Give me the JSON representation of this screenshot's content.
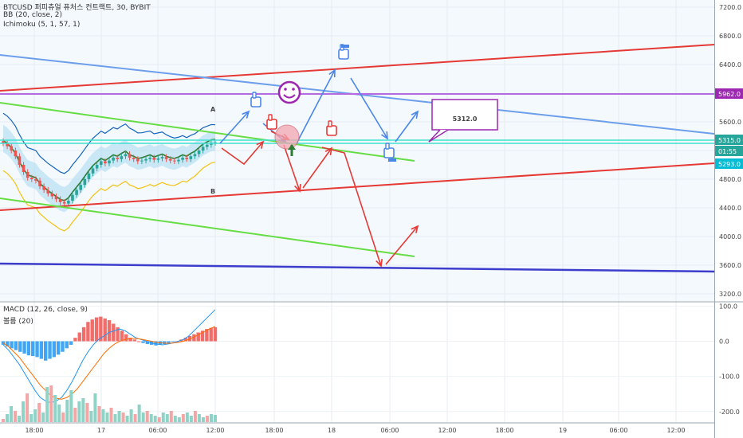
{
  "legend": {
    "symbol": "BTCUSD 퍼피츄얼 퓨처스 컨트랙트, 30, BYBIT",
    "bb": "BB (20, close, 2)",
    "ichimoku": "Ichimoku (5, 1, 57, 1)",
    "macd": "MACD (12, 26, close, 9)",
    "volume": "볼륨 (20)"
  },
  "chart_data": [
    {
      "type": "candlestick",
      "title": "BTCUSD 퍼피츄얼 퓨처스 컨트랙트, 30, BYBIT",
      "ylim": [
        3100,
        7300
      ],
      "y_ticks": [
        "7200.0",
        "6800.0",
        "6400.0",
        "6000.0",
        "5600.0",
        "5200.0",
        "4800.0",
        "4400.0",
        "4000.0",
        "3600.0",
        "3200.0"
      ],
      "price_badges": [
        {
          "text": "5962.0",
          "color": "#9c27b0"
        },
        {
          "text": "5315.0",
          "color": "#26a69a"
        },
        {
          "text": "01:55",
          "color": "#26a69a"
        },
        {
          "text": "5293.0",
          "color": "#00bcd4"
        }
      ],
      "closes": [
        5300,
        5260,
        5200,
        5120,
        5000,
        4900,
        4820,
        4800,
        4780,
        4700,
        4650,
        4600,
        4560,
        4520,
        4480,
        4460,
        4500,
        4580,
        4650,
        4720,
        4800,
        4880,
        4950,
        5000,
        5050,
        5020,
        5060,
        5100,
        5080,
        5120,
        5150,
        5100,
        5080,
        5050,
        5060,
        5080,
        5100,
        5070,
        5090,
        5110,
        5080,
        5060,
        5050,
        5070,
        5100,
        5080,
        5120,
        5150,
        5200,
        5250,
        5280,
        5310,
        5315
      ],
      "annotations": {
        "big_label": "5312.0",
        "letter_a": "A",
        "letter_b": "B",
        "smiley": "☺",
        "paths": [
          {
            "name": "blue-path",
            "color": "#4a86e8",
            "points": [
              [
                5260,
                0
              ],
              [
                5560,
                2
              ],
              [
                5260,
                5
              ],
              [
                6360,
                10
              ],
              [
                5200,
                15
              ],
              [
                5600,
                18
              ]
            ]
          },
          {
            "name": "red-path",
            "color": "#e53935",
            "points": [
              [
                5060,
                3
              ],
              [
                5240,
                6
              ],
              [
                5210,
                7
              ],
              [
                4820,
                10
              ],
              [
                5240,
                14
              ],
              [
                5060,
                15
              ],
              [
                3560,
                19
              ],
              [
                3820,
                21
              ]
            ]
          }
        ]
      },
      "trend_lines": [
        {
          "name": "red-upper-channel",
          "color": "#e53935"
        },
        {
          "name": "red-lower-channel",
          "color": "#e53935"
        },
        {
          "name": "blue-descending",
          "color": "#6d9eeb"
        },
        {
          "name": "green-upper",
          "color": "#66dd44"
        },
        {
          "name": "green-lower",
          "color": "#66dd44"
        },
        {
          "name": "navy-support",
          "color": "#3d3dcc"
        },
        {
          "name": "purple-level",
          "color": "#b36bdf"
        },
        {
          "name": "cyan-level",
          "color": "#40e0d0"
        }
      ]
    },
    {
      "type": "bar",
      "title": "MACD (12, 26, close, 9)",
      "ylim": [
        -230,
        110
      ],
      "y_ticks": [
        "100.0",
        "0.0",
        "-100.0",
        "-200.0"
      ],
      "histogram": [
        -10,
        -15,
        -20,
        -25,
        -30,
        -35,
        -40,
        -42,
        -45,
        -50,
        -55,
        -50,
        -45,
        -38,
        -30,
        -20,
        -10,
        10,
        25,
        40,
        55,
        62,
        68,
        70,
        65,
        60,
        50,
        40,
        30,
        20,
        10,
        5,
        0,
        -5,
        -8,
        -10,
        -12,
        -10,
        -8,
        -5,
        -2,
        0,
        5,
        10,
        15,
        20,
        25,
        30,
        35,
        38,
        40
      ],
      "macd_line": [
        -10,
        -25,
        -45,
        -65,
        -90,
        -115,
        -140,
        -160,
        -170,
        -175,
        -170,
        -160,
        -140,
        -115,
        -85,
        -55,
        -30,
        -10,
        5,
        15,
        25,
        30,
        35,
        30,
        20,
        10,
        5,
        0,
        -5,
        -8,
        -10,
        -8,
        -5,
        0,
        5,
        15,
        30,
        45,
        60,
        75,
        90
      ],
      "signal_line": [
        -5,
        -15,
        -30,
        -45,
        -65,
        -85,
        -105,
        -125,
        -140,
        -155,
        -162,
        -165,
        -160,
        -150,
        -135,
        -115,
        -95,
        -75,
        -55,
        -35,
        -20,
        -8,
        0,
        5,
        8,
        8,
        6,
        3,
        0,
        -3,
        -5,
        -6,
        -5,
        -3,
        0,
        5,
        12,
        20,
        28,
        36,
        42
      ],
      "volume": [
        4,
        10,
        20,
        14,
        8,
        26,
        36,
        10,
        16,
        24,
        12,
        44,
        46,
        34,
        22,
        12,
        28,
        40,
        18,
        26,
        30,
        24,
        14,
        36,
        20,
        16,
        12,
        18,
        10,
        14,
        12,
        8,
        16,
        10,
        22,
        12,
        14,
        10,
        8,
        6,
        12,
        10,
        14,
        8,
        6,
        10,
        12,
        8,
        14,
        10,
        6,
        8,
        10,
        9
      ]
    }
  ],
  "x_ticks": [
    "18:00",
    "17",
    "06:00",
    "12:00",
    "18:00",
    "18",
    "06:00",
    "12:00",
    "18:00",
    "19",
    "06:00",
    "12:00"
  ]
}
